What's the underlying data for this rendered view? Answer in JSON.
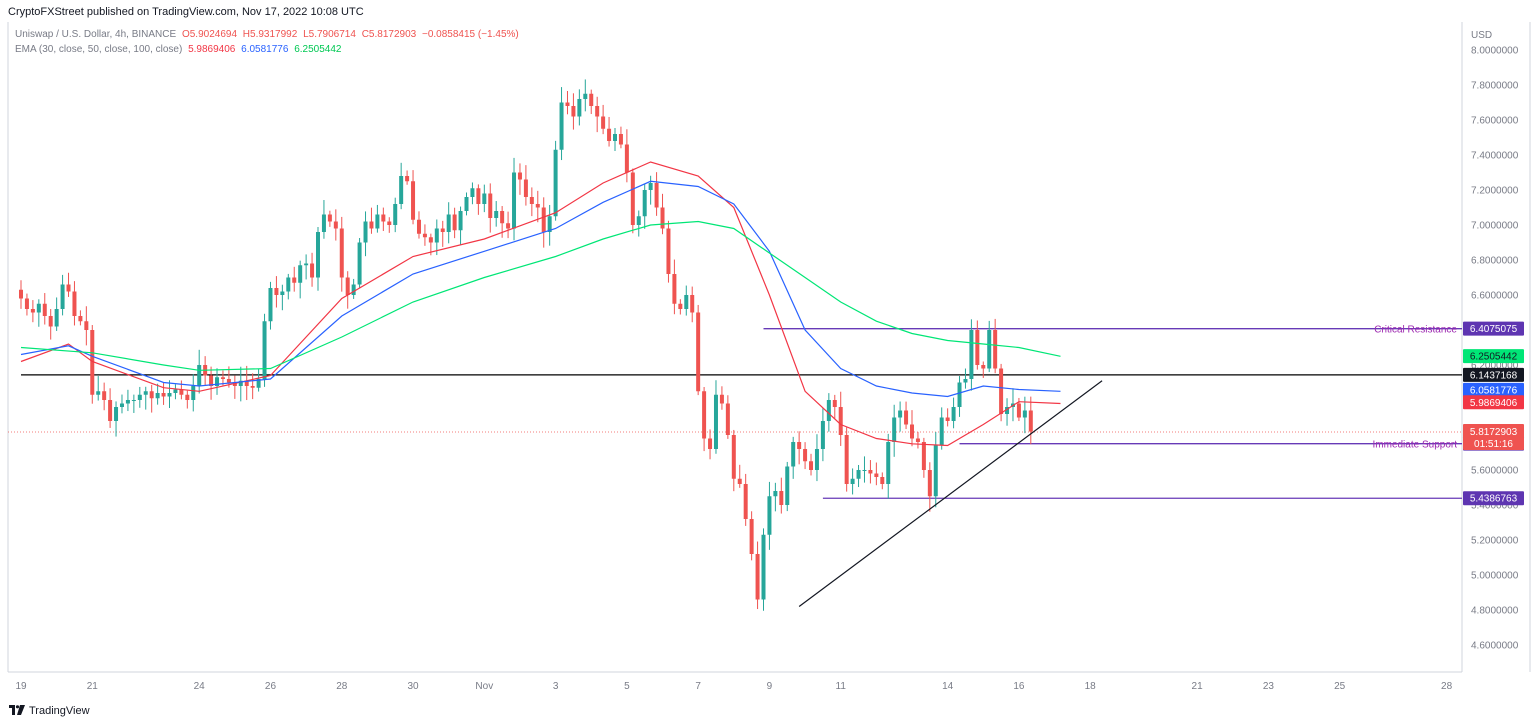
{
  "header": {
    "published": "CryptoFXStreet published on TradingView.com, Nov 17, 2022 10:08 UTC",
    "symbol": "Uniswap / U.S. Dollar, 4h, BINANCE",
    "open": "O5.9024694",
    "high": "H5.9317992",
    "low": "L5.7906714",
    "close": "C5.8172903",
    "change": "−0.0858415 (−1.45%)",
    "ema_label": "EMA (30, close, 50, close, 100, close)",
    "ema30": "5.9869406",
    "ema50": "6.0581776",
    "ema100": "6.2505442"
  },
  "footer": {
    "brand": "TradingView"
  },
  "colors": {
    "up": "#26a69a",
    "down": "#ef5350",
    "ema30": "#f23645",
    "ema50": "#2962ff",
    "ema100": "#00e676",
    "level": "#673ab7",
    "annotation": "#9c27b0"
  },
  "chart_data": {
    "type": "candlestick",
    "currency": "USD",
    "ylim": [
      4.5,
      8.0
    ],
    "y_ticks": [
      "8.0000000",
      "7.8000000",
      "7.6000000",
      "7.4000000",
      "7.2000000",
      "7.0000000",
      "6.8000000",
      "6.6000000",
      "6.4000000",
      "6.2000000",
      "6.0000000",
      "5.8000000",
      "5.6000000",
      "5.4000000",
      "5.2000000",
      "5.0000000",
      "4.8000000",
      "4.6000000"
    ],
    "x_ticks": [
      {
        "label": "19",
        "bar": 0
      },
      {
        "label": "21",
        "bar": 12
      },
      {
        "label": "24",
        "bar": 30
      },
      {
        "label": "26",
        "bar": 42
      },
      {
        "label": "28",
        "bar": 54
      },
      {
        "label": "30",
        "bar": 66
      },
      {
        "label": "Nov",
        "bar": 78
      },
      {
        "label": "3",
        "bar": 90
      },
      {
        "label": "5",
        "bar": 102
      },
      {
        "label": "7",
        "bar": 114
      },
      {
        "label": "9",
        "bar": 126
      },
      {
        "label": "11",
        "bar": 138
      },
      {
        "label": "14",
        "bar": 156
      },
      {
        "label": "16",
        "bar": 168
      },
      {
        "label": "18",
        "bar": 180
      },
      {
        "label": "21",
        "bar": 198
      },
      {
        "label": "23",
        "bar": 210
      },
      {
        "label": "25",
        "bar": 222
      },
      {
        "label": "28",
        "bar": 240
      }
    ],
    "closes": [
      6.58,
      6.52,
      6.5,
      6.55,
      6.48,
      6.42,
      6.52,
      6.66,
      6.62,
      6.48,
      6.45,
      6.4,
      6.03,
      6.05,
      6.0,
      5.88,
      5.96,
      5.98,
      6.0,
      6.0,
      6.03,
      6.05,
      6.01,
      6.04,
      6.02,
      6.04,
      6.06,
      6.03,
      6.0,
      6.08,
      6.2,
      6.14,
      6.08,
      6.13,
      6.12,
      6.1,
      6.08,
      6.11,
      6.08,
      6.07,
      6.12,
      6.45,
      6.64,
      6.6,
      6.62,
      6.7,
      6.67,
      6.77,
      6.78,
      6.7,
      6.96,
      7.06,
      7.02,
      6.98,
      6.7,
      6.6,
      6.66,
      6.9,
      7.02,
      6.98,
      7.06,
      7.02,
      7.0,
      7.12,
      7.28,
      7.25,
      7.03,
      6.95,
      6.93,
      6.9,
      6.98,
      6.96,
      7.06,
      6.97,
      7.08,
      7.16,
      7.21,
      7.12,
      7.18,
      7.04,
      7.08,
      7.01,
      6.98,
      7.3,
      7.26,
      7.16,
      7.12,
      7.1,
      6.96,
      7.05,
      7.43,
      7.7,
      7.68,
      7.62,
      7.72,
      7.75,
      7.68,
      7.62,
      7.55,
      7.48,
      7.52,
      7.46,
      7.3,
      7.0,
      7.05,
      7.2,
      7.24,
      7.1,
      6.98,
      6.72,
      6.55,
      6.52,
      6.6,
      6.5,
      6.05,
      5.78,
      5.72,
      6.03,
      5.98,
      5.8,
      5.55,
      5.52,
      5.32,
      5.12,
      4.86,
      5.23,
      5.45,
      5.48,
      5.4,
      5.62,
      5.76,
      5.72,
      5.65,
      5.6,
      5.72,
      5.88,
      6.0,
      5.96,
      5.8,
      5.52,
      5.55,
      5.6,
      5.6,
      5.58,
      5.56,
      5.52,
      5.76,
      5.9,
      5.94,
      5.86,
      5.78,
      5.76,
      5.6,
      5.45,
      5.74,
      5.9,
      5.88,
      5.96,
      6.1,
      6.12,
      6.4,
      6.2,
      6.18,
      6.4,
      6.18,
      5.92,
      5.96,
      5.98,
      5.9,
      5.94,
      5.82
    ],
    "ema": [
      {
        "period": 30,
        "value": "5.9869406",
        "color": "#f23645",
        "points": [
          [
            0,
            6.22
          ],
          [
            8,
            6.32
          ],
          [
            12,
            6.22
          ],
          [
            24,
            6.07
          ],
          [
            30,
            6.05
          ],
          [
            42,
            6.14
          ],
          [
            54,
            6.58
          ],
          [
            66,
            6.82
          ],
          [
            78,
            6.92
          ],
          [
            90,
            7.07
          ],
          [
            98,
            7.24
          ],
          [
            106,
            7.36
          ],
          [
            114,
            7.28
          ],
          [
            120,
            7.1
          ],
          [
            126,
            6.6
          ],
          [
            132,
            6.05
          ],
          [
            138,
            5.86
          ],
          [
            144,
            5.78
          ],
          [
            150,
            5.75
          ],
          [
            156,
            5.74
          ],
          [
            162,
            5.86
          ],
          [
            168,
            5.99
          ],
          [
            175,
            5.98
          ]
        ]
      },
      {
        "period": 50,
        "value": "6.0581776",
        "color": "#2962ff",
        "points": [
          [
            0,
            6.26
          ],
          [
            8,
            6.31
          ],
          [
            12,
            6.25
          ],
          [
            24,
            6.1
          ],
          [
            30,
            6.08
          ],
          [
            42,
            6.12
          ],
          [
            54,
            6.48
          ],
          [
            66,
            6.72
          ],
          [
            78,
            6.85
          ],
          [
            90,
            6.98
          ],
          [
            98,
            7.13
          ],
          [
            106,
            7.25
          ],
          [
            114,
            7.22
          ],
          [
            120,
            7.12
          ],
          [
            126,
            6.85
          ],
          [
            132,
            6.4
          ],
          [
            138,
            6.18
          ],
          [
            144,
            6.08
          ],
          [
            150,
            6.04
          ],
          [
            156,
            6.02
          ],
          [
            162,
            6.08
          ],
          [
            168,
            6.06
          ],
          [
            175,
            6.05
          ]
        ]
      },
      {
        "period": 100,
        "value": "6.2505442",
        "color": "#00e676",
        "points": [
          [
            0,
            6.3
          ],
          [
            12,
            6.27
          ],
          [
            24,
            6.2
          ],
          [
            30,
            6.17
          ],
          [
            42,
            6.18
          ],
          [
            54,
            6.36
          ],
          [
            66,
            6.56
          ],
          [
            78,
            6.7
          ],
          [
            90,
            6.82
          ],
          [
            98,
            6.92
          ],
          [
            106,
            7.0
          ],
          [
            114,
            7.02
          ],
          [
            120,
            6.98
          ],
          [
            126,
            6.84
          ],
          [
            132,
            6.7
          ],
          [
            138,
            6.56
          ],
          [
            144,
            6.45
          ],
          [
            150,
            6.38
          ],
          [
            156,
            6.34
          ],
          [
            162,
            6.32
          ],
          [
            168,
            6.3
          ],
          [
            175,
            6.25
          ]
        ]
      }
    ],
    "levels": [
      {
        "name": "Critical Resistance",
        "value": "6.4075075",
        "y": 6.4075075,
        "from_bar": 125,
        "color": "#673ab7"
      },
      {
        "value": "6.1437168",
        "y": 6.1437168,
        "from_bar": 0,
        "color": "#000000"
      },
      {
        "name": "Immediate Support",
        "value": "5.7504289",
        "y": 5.7504289,
        "from_bar": 158,
        "color": "#673ab7"
      },
      {
        "value": "5.4386763",
        "y": 5.4386763,
        "from_bar": 135,
        "color": "#673ab7"
      }
    ],
    "trendline": {
      "from": [
        131,
        4.82
      ],
      "to": [
        182,
        6.11
      ]
    },
    "price_labels": [
      {
        "value": "6.2505442",
        "y": 6.2505442,
        "bg": "#00e676",
        "fg": "#131722"
      },
      {
        "value": "6.0581776",
        "y": 6.0581776,
        "bg": "#2962ff",
        "fg": "#ffffff"
      },
      {
        "value": "5.9869406",
        "y": 5.9869406,
        "bg": "#f23645",
        "fg": "#ffffff"
      }
    ],
    "last_price": {
      "value": "5.8172903",
      "countdown": "01:51:16",
      "y": 5.8172903
    }
  }
}
